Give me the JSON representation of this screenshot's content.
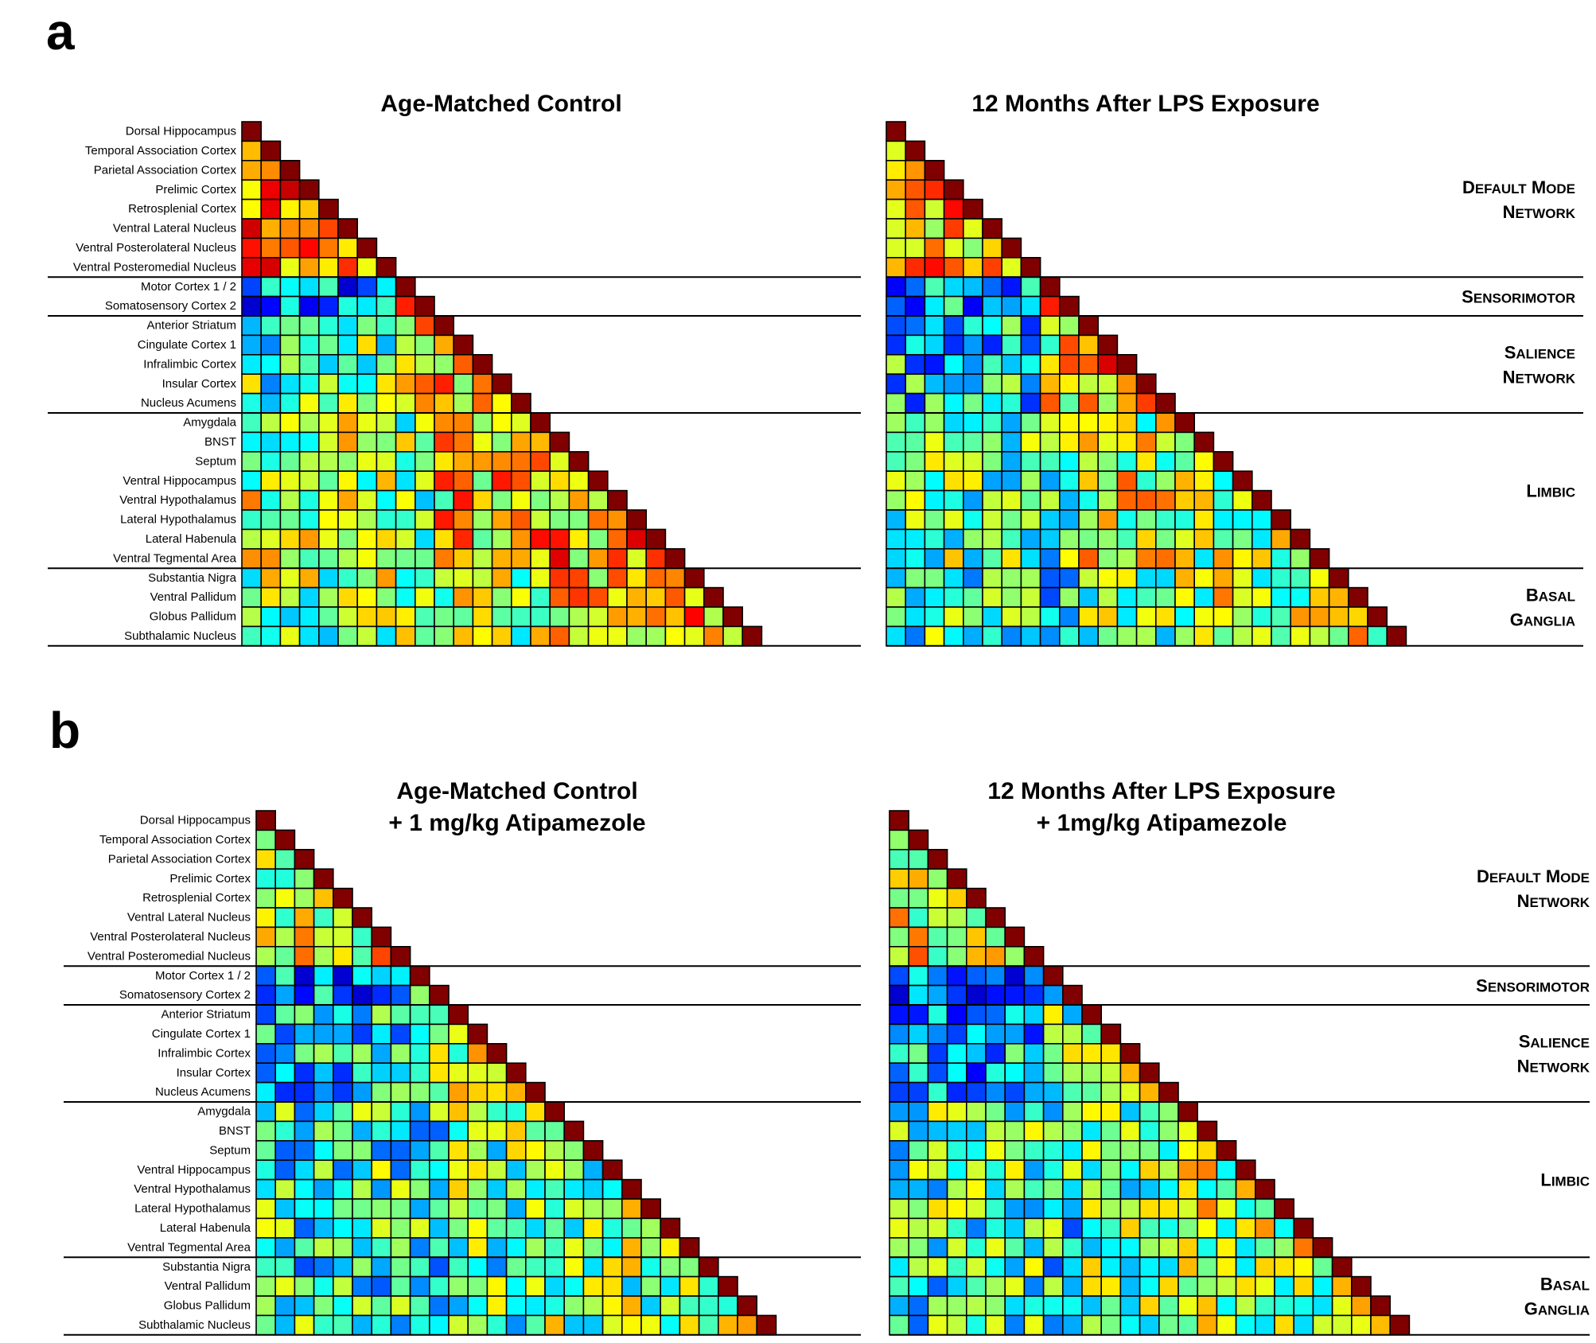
{
  "figure": {
    "panel_labels": [
      "a",
      "b"
    ],
    "colormap_note": "jet colormap; value 1.0 = dark red (diagonal)",
    "regions": [
      "Dorsal Hippocampus",
      "Temporal Association Cortex",
      "Parietal Association Cortex",
      "Prelimic Cortex",
      "Retrosplenial Cortex",
      "Ventral Lateral Nucleus",
      "Ventral Posterolateral Nucleus",
      "Ventral Posteromedial Nucleus",
      "Motor Cortex 1 / 2",
      "Somatosensory Cortex 2",
      "Anterior Striatum",
      "Cingulate Cortex 1",
      "Infralimbic Cortex",
      "Insular Cortex",
      "Nucleus Acumens",
      "Amygdala",
      "BNST",
      "Septum",
      "Ventral Hippocampus",
      "Ventral Hypothalamus",
      "Lateral Hypothalamus",
      "Lateral Habenula",
      "Ventral Tegmental Area",
      "Substantia Nigra",
      "Ventral Pallidum",
      "Globus Pallidum",
      "Subthalamic Nucleus"
    ],
    "networks": [
      {
        "line1": "Default Mode",
        "line2": "Network",
        "start": 0,
        "end": 7
      },
      {
        "line1": "Sensorimotor",
        "line2": "",
        "start": 8,
        "end": 9
      },
      {
        "line1": "Salience",
        "line2": "Network",
        "start": 10,
        "end": 14
      },
      {
        "line1": "Limbic",
        "line2": "",
        "start": 15,
        "end": 22
      },
      {
        "line1": "Basal",
        "line2": "Ganglia",
        "start": 23,
        "end": 26
      }
    ]
  },
  "chart_data": [
    {
      "type": "heatmap",
      "panel": "a",
      "title_lines": [
        "Age-Matched Control"
      ],
      "matrix": "lower-triangular 27x27 functional connectivity (correlation) heatmap",
      "seed": 11,
      "blocks": [
        [
          0.8,
          0.55,
          0.78,
          0.5,
          0.3
        ],
        [
          0.25,
          0.75,
          0.7,
          0.5,
          0.45
        ],
        [
          0.45,
          0.7,
          0.7,
          0.65,
          0.55
        ],
        [
          0.55,
          0.5,
          0.65,
          0.7,
          0.62
        ],
        [
          0.52,
          0.48,
          0.55,
          0.62,
          0.68
        ]
      ]
    },
    {
      "type": "heatmap",
      "panel": "a",
      "title_lines": [
        "12 Months After LPS Exposure"
      ],
      "matrix": "lower-triangular 27x27 functional connectivity (correlation) heatmap",
      "seed": 23,
      "blocks": [
        [
          0.7,
          0.5,
          0.65,
          0.45,
          0.4
        ],
        [
          0.3,
          0.65,
          0.6,
          0.45,
          0.4
        ],
        [
          0.35,
          0.62,
          0.72,
          0.55,
          0.45
        ],
        [
          0.48,
          0.45,
          0.58,
          0.55,
          0.55
        ],
        [
          0.45,
          0.4,
          0.5,
          0.55,
          0.62
        ]
      ]
    },
    {
      "type": "heatmap",
      "panel": "b",
      "title_lines": [
        "Age-Matched Control",
        "+ 1 mg/kg Atipamezole"
      ],
      "matrix": "lower-triangular 27x27 functional connectivity (correlation) heatmap",
      "seed": 37,
      "blocks": [
        [
          0.6,
          0.45,
          0.55,
          0.4,
          0.35
        ],
        [
          0.25,
          0.55,
          0.45,
          0.35,
          0.35
        ],
        [
          0.35,
          0.5,
          0.55,
          0.5,
          0.42
        ],
        [
          0.42,
          0.4,
          0.48,
          0.5,
          0.55
        ],
        [
          0.4,
          0.38,
          0.45,
          0.5,
          0.58
        ]
      ]
    },
    {
      "type": "heatmap",
      "panel": "b",
      "title_lines": [
        "12 Months After LPS Exposure",
        "+ 1mg/kg Atipamezole"
      ],
      "matrix": "lower-triangular 27x27 functional connectivity (correlation) heatmap",
      "seed": 53,
      "blocks": [
        [
          0.62,
          0.45,
          0.6,
          0.42,
          0.4
        ],
        [
          0.25,
          0.45,
          0.48,
          0.42,
          0.4
        ],
        [
          0.3,
          0.48,
          0.6,
          0.5,
          0.42
        ],
        [
          0.45,
          0.4,
          0.48,
          0.55,
          0.55
        ],
        [
          0.42,
          0.4,
          0.48,
          0.55,
          0.65
        ]
      ]
    }
  ]
}
